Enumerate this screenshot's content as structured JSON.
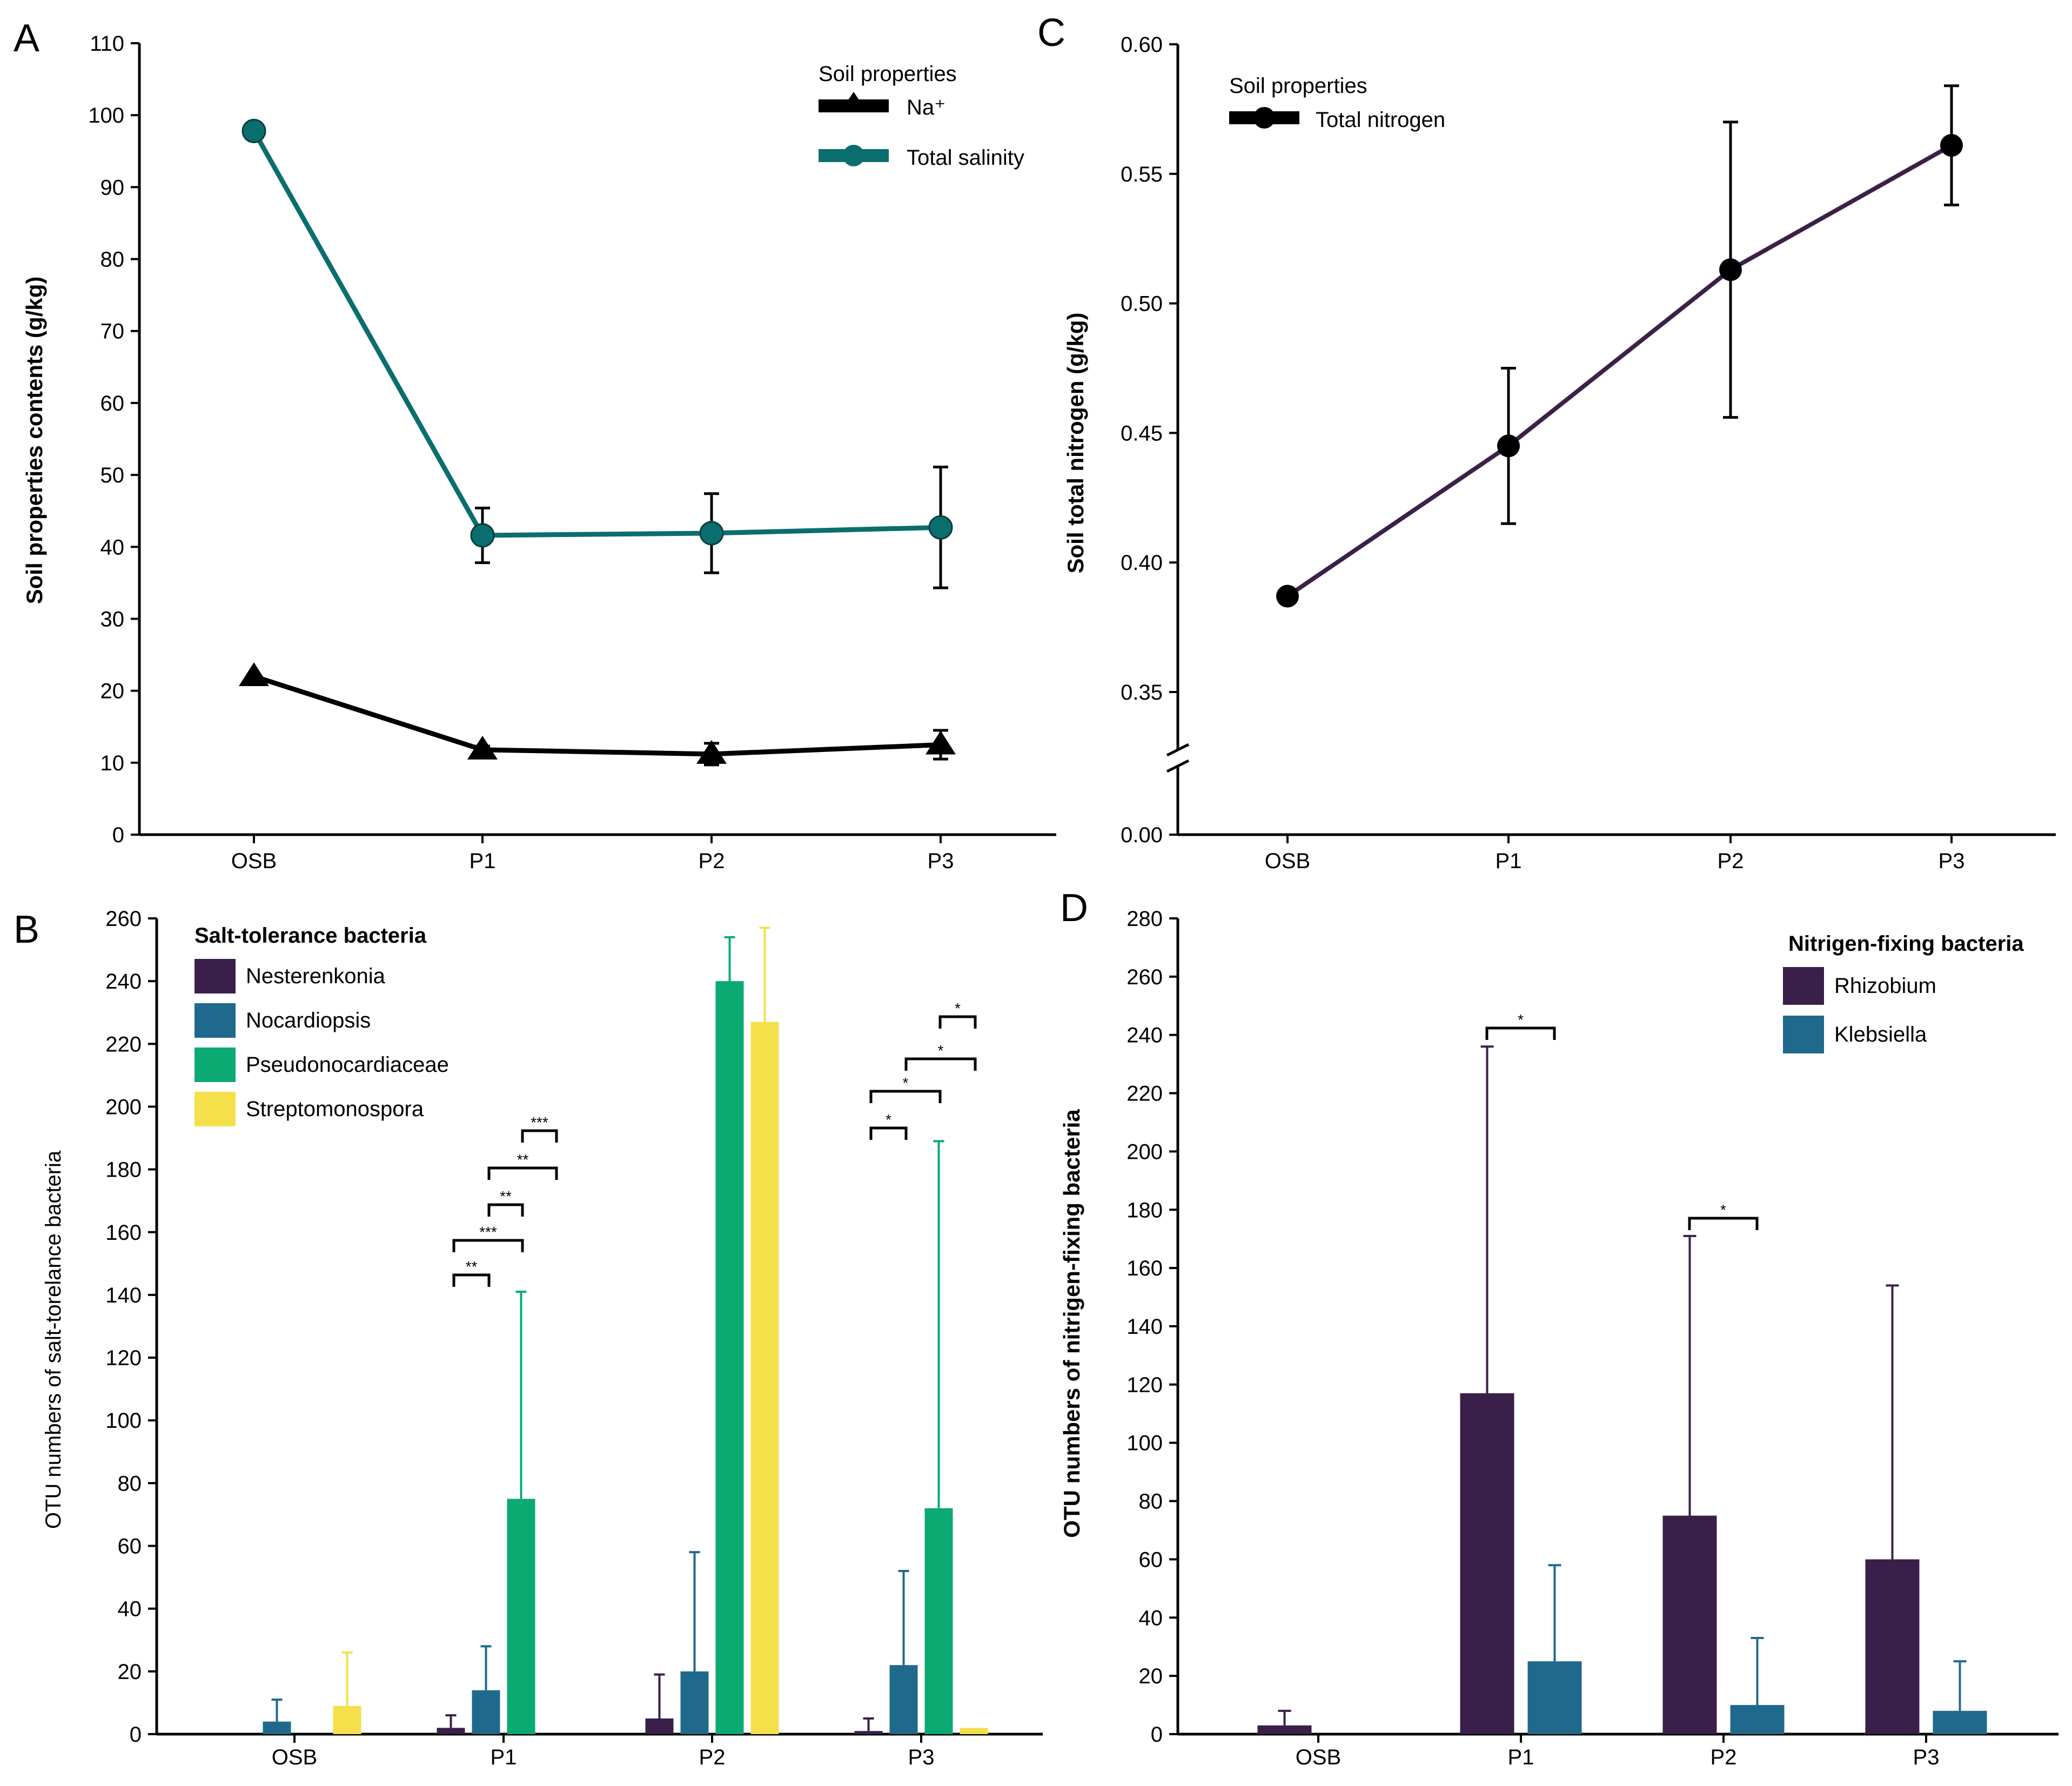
{
  "colors": {
    "total_salinity": "#0b6e6e",
    "na": "#000000",
    "total_nitrogen": "#3b2147",
    "nesterenkonia": "#3a1f4a",
    "nocardiopsis": "#1f6a8c",
    "pseudonocardiaceae": "#0aaa72",
    "streptomonospora": "#f4e04b",
    "rhizobium": "#3a1f4a",
    "klebsiella": "#1f6a8c"
  },
  "chart_data": [
    {
      "panel": "A",
      "type": "line",
      "categories": [
        "OSB",
        "P1",
        "P2",
        "P3"
      ],
      "ylabel": "Soil properties contents (g/kg)",
      "ylim": [
        0,
        110
      ],
      "yticks": [
        "0",
        "10",
        "20",
        "30",
        "40",
        "50",
        "60",
        "70",
        "80",
        "90",
        "100",
        "110"
      ],
      "legend_title": "Soil properties",
      "series": [
        {
          "name": "Na⁺",
          "values": [
            22,
            11.8,
            11.2,
            12.5
          ],
          "err": [
            0,
            0.5,
            1.5,
            2.0
          ],
          "marker": "triangle"
        },
        {
          "name": "Total salinity",
          "values": [
            97.8,
            41.6,
            41.9,
            42.7
          ],
          "err": [
            0,
            3.8,
            5.5,
            8.4
          ],
          "marker": "circle"
        }
      ]
    },
    {
      "panel": "C",
      "type": "line",
      "categories": [
        "OSB",
        "P1",
        "P2",
        "P3"
      ],
      "ylabel": "Soil total nitrogen (g/kg)",
      "ylim": [
        0.35,
        0.6
      ],
      "yticks": [
        "0.00",
        "0.35",
        "0.40",
        "0.45",
        "0.50",
        "0.55",
        "0.60"
      ],
      "axis_break": true,
      "legend_title": "Soil properties",
      "series": [
        {
          "name": "Total nitrogen",
          "values": [
            0.387,
            0.445,
            0.513,
            0.561
          ],
          "err": [
            0,
            0.03,
            0.057,
            0.023
          ],
          "marker": "circle"
        }
      ]
    },
    {
      "panel": "B",
      "type": "bar",
      "categories": [
        "OSB",
        "P1",
        "P2",
        "P3"
      ],
      "ylabel": "OTU numbers of salt-torelance bacteria",
      "ylim": [
        0,
        260
      ],
      "yticks": [
        "0",
        "20",
        "40",
        "60",
        "80",
        "100",
        "120",
        "140",
        "160",
        "180",
        "200",
        "220",
        "240",
        "260"
      ],
      "legend_title": "Salt-tolerance bacteria",
      "series": [
        {
          "name": "Nesterenkonia",
          "values": [
            0,
            2,
            5,
            1
          ],
          "err": [
            0,
            4,
            14,
            4
          ]
        },
        {
          "name": "Nocardiopsis",
          "values": [
            4,
            14,
            20,
            22
          ],
          "err": [
            7,
            14,
            38,
            30
          ]
        },
        {
          "name": "Pseudonocardiaceae",
          "values": [
            0,
            75,
            240,
            72
          ],
          "err": [
            0,
            66,
            14,
            117
          ]
        },
        {
          "name": "Streptomonospora",
          "values": [
            9,
            0,
            227,
            2
          ],
          "err": [
            17,
            0,
            30,
            0
          ]
        }
      ],
      "significance": [
        "**",
        "***",
        "**",
        "**",
        "***",
        "*",
        "*",
        "*",
        "*"
      ]
    },
    {
      "panel": "D",
      "type": "bar",
      "categories": [
        "OSB",
        "P1",
        "P2",
        "P3"
      ],
      "ylabel": "OTU numbers of nitrigen-fixing bacteria",
      "ylim": [
        0,
        280
      ],
      "yticks": [
        "0",
        "20",
        "40",
        "60",
        "80",
        "100",
        "120",
        "140",
        "160",
        "180",
        "200",
        "220",
        "240",
        "260",
        "280"
      ],
      "legend_title": "Nitrigen-fixing bacteria",
      "series": [
        {
          "name": "Rhizobium",
          "values": [
            3,
            117,
            75,
            60
          ],
          "err": [
            5,
            119,
            96,
            94
          ]
        },
        {
          "name": "Klebsiella",
          "values": [
            0,
            25,
            10,
            8
          ],
          "err": [
            0,
            33,
            23,
            17
          ]
        }
      ],
      "significance": [
        "*",
        "*"
      ]
    }
  ]
}
